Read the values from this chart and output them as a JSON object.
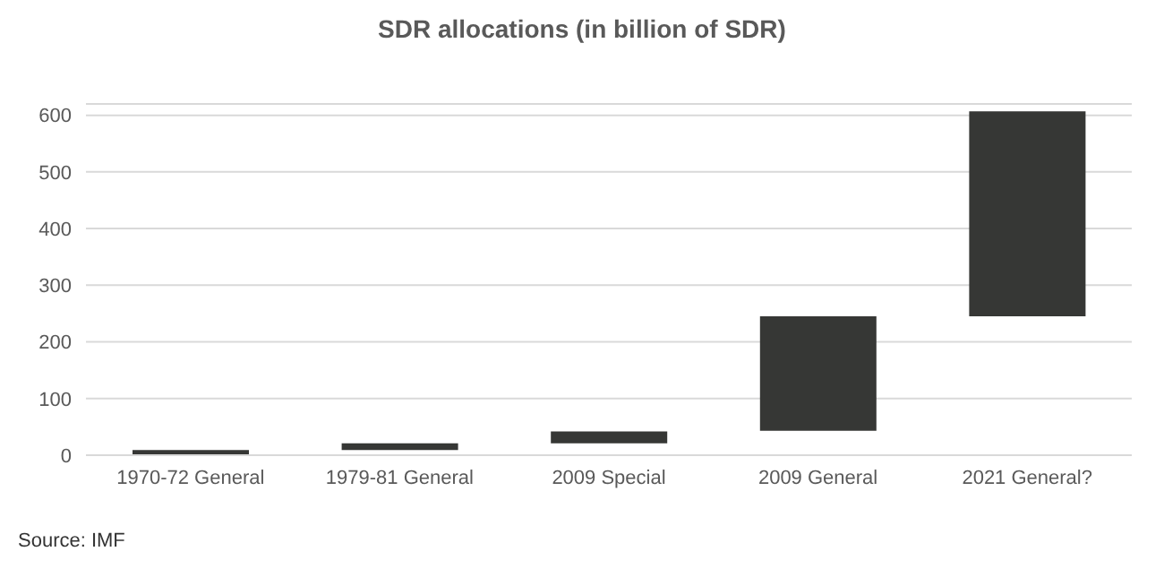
{
  "chart_data": {
    "type": "bar",
    "title": "SDR allocations (in billion of SDR)",
    "categories": [
      "1970-72 General",
      "1979-81 General",
      "2009 Special",
      "2009 General",
      "2021 General?"
    ],
    "values": [
      9,
      12,
      21,
      202,
      362
    ],
    "base": [
      0,
      9,
      21,
      43,
      245
    ],
    "color": "#363735",
    "ylim": [
      0,
      620
    ],
    "yticks": [
      0,
      100,
      200,
      300,
      400,
      500,
      600
    ],
    "grid": "y",
    "annotations": [
      "Source: IMF"
    ]
  }
}
